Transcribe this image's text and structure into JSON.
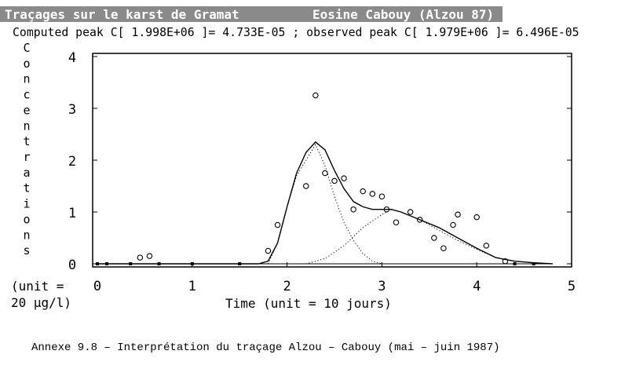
{
  "header": {
    "title_left": "Traçages sur le karst de Gramat",
    "title_right": "Eosine Cabouy (Alzou 87)",
    "subtitle": "Computed peak C[ 1.998E+06 ]= 4.733E-05 ; observed peak C[ 1.979E+06 ]= 6.496E-05"
  },
  "caption": "Annexe 9.8 – Interprétation du traçage  Alzou – Cabouy    (mai – juin 1987)",
  "chart_data": {
    "type": "scatter",
    "xlabel": "Time (unit = 10 jours)",
    "ylabel": "Concentrations",
    "ylabel_unit_line1": "(unit =",
    "ylabel_unit_line2": "20 µg/l)",
    "xlim": [
      0,
      5
    ],
    "ylim": [
      0,
      4
    ],
    "x_ticks": [
      "0",
      "1",
      "2",
      "3",
      "4",
      "5"
    ],
    "y_ticks": [
      "0",
      "1",
      "2",
      "3",
      "4"
    ],
    "grid": false,
    "series": [
      {
        "kind": "observed_points",
        "points": [
          [
            0.0,
            0.0
          ],
          [
            0.1,
            0.0
          ],
          [
            0.35,
            0.0
          ],
          [
            0.45,
            0.12
          ],
          [
            0.55,
            0.15
          ],
          [
            0.65,
            0.0
          ],
          [
            1.0,
            0.0
          ],
          [
            1.5,
            0.0
          ],
          [
            1.8,
            0.25
          ],
          [
            1.9,
            0.75
          ],
          [
            2.2,
            1.5
          ],
          [
            2.3,
            3.25
          ],
          [
            2.4,
            1.75
          ],
          [
            2.5,
            1.6
          ],
          [
            2.6,
            1.65
          ],
          [
            2.7,
            1.05
          ],
          [
            2.8,
            1.4
          ],
          [
            2.9,
            1.35
          ],
          [
            3.0,
            1.3
          ],
          [
            3.05,
            1.05
          ],
          [
            3.15,
            0.8
          ],
          [
            3.3,
            1.0
          ],
          [
            3.4,
            0.85
          ],
          [
            3.55,
            0.5
          ],
          [
            3.65,
            0.3
          ],
          [
            3.75,
            0.75
          ],
          [
            3.8,
            0.95
          ],
          [
            4.0,
            0.9
          ],
          [
            4.1,
            0.35
          ],
          [
            4.3,
            0.05
          ],
          [
            4.4,
            0.0
          ],
          [
            4.6,
            0.0
          ]
        ]
      },
      {
        "kind": "computed_total",
        "points": [
          [
            0.0,
            0.0
          ],
          [
            1.7,
            0.0
          ],
          [
            1.8,
            0.05
          ],
          [
            1.9,
            0.4
          ],
          [
            2.0,
            1.1
          ],
          [
            2.1,
            1.75
          ],
          [
            2.2,
            2.15
          ],
          [
            2.3,
            2.35
          ],
          [
            2.4,
            2.2
          ],
          [
            2.5,
            1.8
          ],
          [
            2.6,
            1.45
          ],
          [
            2.7,
            1.2
          ],
          [
            2.8,
            1.1
          ],
          [
            2.9,
            1.05
          ],
          [
            3.0,
            1.05
          ],
          [
            3.1,
            1.05
          ],
          [
            3.2,
            1.0
          ],
          [
            3.4,
            0.85
          ],
          [
            3.6,
            0.7
          ],
          [
            3.8,
            0.5
          ],
          [
            4.0,
            0.3
          ],
          [
            4.2,
            0.12
          ],
          [
            4.4,
            0.05
          ],
          [
            4.6,
            0.02
          ],
          [
            4.8,
            0.0
          ]
        ]
      },
      {
        "kind": "component_1",
        "points": [
          [
            1.8,
            0.0
          ],
          [
            1.9,
            0.4
          ],
          [
            2.0,
            1.1
          ],
          [
            2.1,
            1.7
          ],
          [
            2.2,
            2.0
          ],
          [
            2.3,
            2.3
          ],
          [
            2.4,
            1.9
          ],
          [
            2.5,
            1.3
          ],
          [
            2.6,
            0.8
          ],
          [
            2.7,
            0.45
          ],
          [
            2.8,
            0.2
          ],
          [
            2.9,
            0.05
          ],
          [
            3.0,
            0.0
          ]
        ]
      },
      {
        "kind": "component_2",
        "points": [
          [
            2.2,
            0.0
          ],
          [
            2.4,
            0.1
          ],
          [
            2.6,
            0.35
          ],
          [
            2.8,
            0.7
          ],
          [
            3.0,
            0.95
          ],
          [
            3.1,
            1.05
          ],
          [
            3.2,
            1.0
          ],
          [
            3.4,
            0.85
          ],
          [
            3.6,
            0.65
          ],
          [
            3.8,
            0.45
          ],
          [
            4.0,
            0.28
          ],
          [
            4.2,
            0.12
          ],
          [
            4.4,
            0.05
          ],
          [
            4.7,
            0.0
          ]
        ]
      }
    ]
  }
}
